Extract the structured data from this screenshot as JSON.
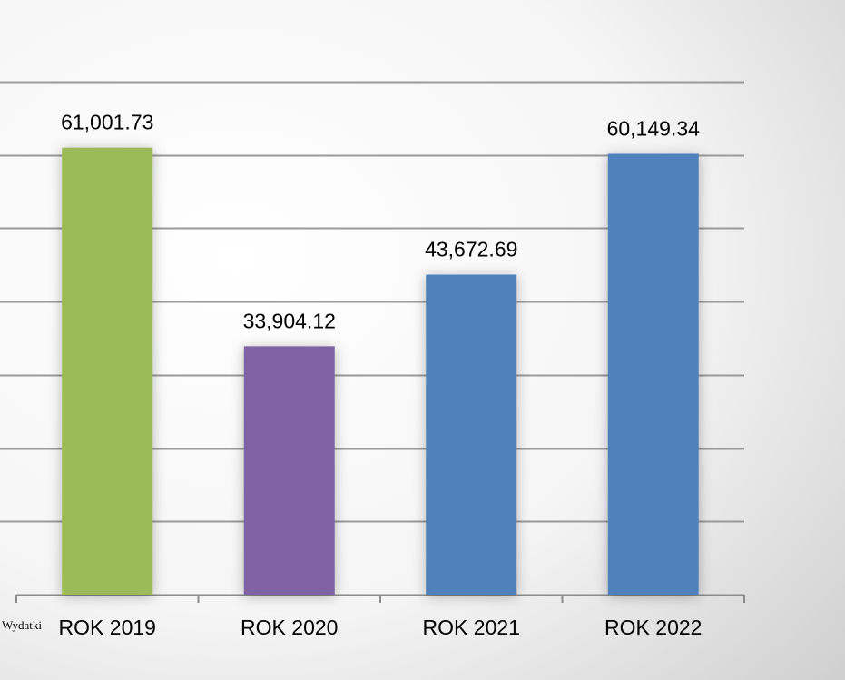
{
  "corner_label": "Wydatki",
  "chart_data": {
    "type": "bar",
    "categories": [
      "ROK 2019",
      "ROK 2020",
      "ROK 2021",
      "ROK 2022"
    ],
    "values": [
      61001.73,
      33904.12,
      43672.69,
      60149.34
    ],
    "data_labels": [
      "61,001.73",
      "33,904.12",
      "43,672.69",
      "60,149.34"
    ],
    "colors": [
      "#9BBB59",
      "#8064A2",
      "#4F81BD",
      "#4F81BD"
    ],
    "title": "",
    "xlabel": "",
    "ylabel": "",
    "ylim": [
      0,
      70000
    ],
    "gridlines": true,
    "legend": "none"
  }
}
